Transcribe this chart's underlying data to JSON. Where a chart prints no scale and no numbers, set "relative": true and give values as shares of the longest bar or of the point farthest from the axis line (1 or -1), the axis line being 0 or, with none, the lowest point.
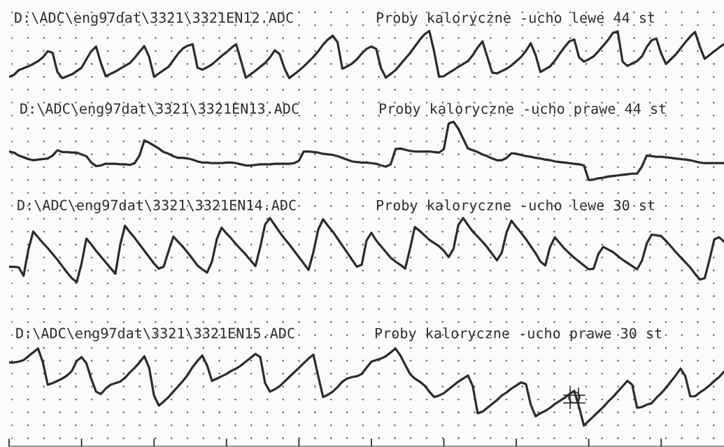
{
  "chart_data": [
    {
      "type": "line",
      "title": "D:\\ADC\\eng97dat\\3321\\3321EN12.ADC",
      "subtitle": "Proby kaloryczne -ucho lewe 44 st",
      "relative": true,
      "grid": true,
      "color": "#2b2b2b",
      "categories": [
        null,
        null,
        null,
        null,
        null,
        null,
        null,
        null,
        null,
        null,
        null,
        null,
        null,
        null,
        null,
        null,
        null,
        null,
        null,
        null,
        null,
        null,
        null,
        null,
        null,
        null,
        null,
        null,
        null,
        null,
        null,
        null,
        null,
        null,
        null,
        null,
        null,
        null,
        null,
        null,
        null,
        null,
        null,
        null,
        null,
        null,
        null,
        null,
        null,
        null,
        null,
        null,
        null,
        null,
        null,
        null,
        null,
        null,
        null,
        null,
        null,
        null,
        null,
        null,
        null,
        null,
        null,
        null,
        null,
        null,
        null,
        null,
        null,
        null,
        null,
        null,
        null,
        null,
        null,
        null,
        null,
        null,
        null,
        null,
        null,
        null,
        null,
        null,
        null,
        null,
        null,
        null,
        null,
        null,
        null,
        null,
        null,
        null,
        null,
        null,
        null,
        null,
        null,
        null,
        null,
        null,
        null,
        null,
        null,
        null,
        null,
        null,
        null,
        null,
        null,
        null,
        null,
        null,
        null,
        null,
        null,
        null,
        null,
        null,
        null,
        null,
        null,
        null,
        null,
        null,
        null,
        null,
        null,
        null,
        null,
        null,
        null,
        null,
        null,
        null,
        null,
        null,
        null,
        null,
        null,
        null,
        null,
        null,
        null
      ],
      "values": [
        0.03,
        0.07,
        0.17,
        0.21,
        0.25,
        0.3,
        0.36,
        0.44,
        0.57,
        0.54,
        0.13,
        0,
        0.04,
        0.08,
        0.15,
        0.22,
        0.4,
        0.57,
        0.67,
        0.32,
        0.04,
        0.09,
        0.14,
        0.2,
        0.26,
        0.32,
        0.43,
        0.56,
        0.68,
        0.45,
        0.03,
        0.1,
        0.17,
        0.24,
        0.38,
        0.52,
        0.63,
        0.69,
        0.72,
        0.22,
        0.18,
        0.23,
        0.29,
        0.38,
        0.47,
        0.55,
        0.64,
        0.72,
        0.37,
        0.01,
        0.08,
        0.16,
        0.24,
        0.32,
        0.44,
        0.59,
        0.51,
        0.21,
        0,
        0.08,
        0.16,
        0.25,
        0.35,
        0.45,
        0.57,
        0.71,
        0.82,
        0.9,
        0.76,
        0.2,
        0.25,
        0.31,
        0.4,
        0.52,
        0.62,
        0.67,
        0.62,
        0.21,
        0.01,
        0.09,
        0.17,
        0.29,
        0.41,
        0.53,
        0.67,
        0.81,
        0.93,
        1,
        0.56,
        0.03,
        0.04,
        0.11,
        0.17,
        0.24,
        0.3,
        0.36,
        0.49,
        0.65,
        0.78,
        0.45,
        0.12,
        0.1,
        0.15,
        0.2,
        0.27,
        0.36,
        0.45,
        0.58,
        0.74,
        0.49,
        0.13,
        0.19,
        0.25,
        0.37,
        0.52,
        0.66,
        0.78,
        0.82,
        0.44,
        0.35,
        0.4,
        0.46,
        0.57,
        0.69,
        0.81,
        0.96,
        0.99,
        0.35,
        0.26,
        0.31,
        0.36,
        0.46,
        0.66,
        0.8,
        0.84,
        0.52,
        0.3,
        0.4,
        0.5,
        0.63,
        0.76,
        0.88,
        0.98,
        0.67,
        0.41,
        0.49,
        0.57,
        0.65,
        0.72
      ]
    },
    {
      "type": "line",
      "title": "D:\\ADC\\eng97dat\\3321\\3321EN13.ADC",
      "subtitle": "Proby kaloryczne -ucho prawe 44 st",
      "relative": true,
      "grid": true,
      "color": "#2b2b2b",
      "categories": [
        null,
        null,
        null,
        null,
        null,
        null,
        null,
        null,
        null,
        null,
        null,
        null,
        null,
        null,
        null,
        null,
        null,
        null,
        null,
        null,
        null,
        null,
        null,
        null,
        null,
        null,
        null,
        null,
        null,
        null,
        null,
        null,
        null,
        null,
        null,
        null,
        null,
        null,
        null,
        null,
        null,
        null,
        null,
        null,
        null,
        null,
        null,
        null,
        null,
        null,
        null,
        null,
        null,
        null,
        null,
        null,
        null,
        null,
        null,
        null,
        null,
        null,
        null,
        null,
        null,
        null,
        null,
        null,
        null,
        null,
        null,
        null,
        null,
        null,
        null,
        null,
        null,
        null,
        null,
        null,
        null,
        null,
        null,
        null,
        null,
        null,
        null,
        null,
        null,
        null,
        null,
        null,
        null,
        null,
        null,
        null,
        null,
        null,
        null,
        null,
        null,
        null,
        null,
        null,
        null,
        null,
        null,
        null,
        null,
        null,
        null,
        null,
        null,
        null,
        null,
        null,
        null,
        null,
        null,
        null,
        null,
        null,
        null,
        null,
        null,
        null,
        null,
        null,
        null,
        null,
        null,
        null,
        null,
        null,
        null,
        null,
        null,
        null,
        null,
        null,
        null,
        null,
        null,
        null,
        null,
        null,
        null,
        null,
        null
      ],
      "values": [
        0.49,
        0.47,
        0.42,
        0.39,
        0.36,
        0.34,
        0.35,
        0.36,
        0.37,
        0.42,
        0.51,
        0.48,
        0.48,
        0.47,
        0.47,
        0.44,
        0.41,
        0.3,
        0.24,
        0.25,
        0.28,
        0.28,
        0.28,
        0.27,
        0.27,
        0.26,
        0.29,
        0.42,
        0.68,
        0.64,
        0.59,
        0.54,
        0.48,
        0.45,
        0.41,
        0.38,
        0.38,
        0.37,
        0.35,
        0.32,
        0.3,
        0.3,
        0.29,
        0.29,
        0.29,
        0.3,
        0.3,
        0.29,
        0.27,
        0.25,
        0.25,
        0.26,
        0.27,
        0.27,
        0.27,
        0.28,
        0.28,
        0.28,
        0.28,
        0.29,
        0.33,
        0.49,
        0.49,
        0.48,
        0.47,
        0.45,
        0.44,
        0.43,
        0.41,
        0.38,
        0.35,
        0.32,
        0.31,
        0.3,
        0.3,
        0.29,
        0.28,
        0.25,
        0.23,
        0.27,
        0.53,
        0.54,
        0.52,
        0.5,
        0.49,
        0.49,
        0.49,
        0.49,
        0.48,
        0.47,
        0.53,
        0.97,
        1,
        0.88,
        0.71,
        0.54,
        0.51,
        0.48,
        0.44,
        0.41,
        0.37,
        0.34,
        0.34,
        0.38,
        0.46,
        0.45,
        0.43,
        0.41,
        0.4,
        0.38,
        0.37,
        0.35,
        0.34,
        0.32,
        0.31,
        0.3,
        0.29,
        0.28,
        0.27,
        0.25,
        0,
        0.01,
        0.03,
        0.04,
        0.06,
        0.07,
        0.08,
        0.09,
        0.1,
        0.11,
        0.11,
        0.23,
        0.42,
        0.41,
        0.4,
        0.4,
        0.39,
        0.38,
        0.37,
        0.36,
        0.35,
        0.34,
        0.32,
        0.3,
        0.29,
        0.29,
        0.29,
        0.29,
        0.29
      ]
    },
    {
      "type": "line",
      "title": "D:\\ADC\\eng97dat\\3321\\3321EN14.ADC",
      "subtitle": "Proby kaloryczne -ucho lewe 30 st",
      "relative": true,
      "grid": true,
      "color": "#2b2b2b",
      "categories": [
        null,
        null,
        null,
        null,
        null,
        null,
        null,
        null,
        null,
        null,
        null,
        null,
        null,
        null,
        null,
        null,
        null,
        null,
        null,
        null,
        null,
        null,
        null,
        null,
        null,
        null,
        null,
        null,
        null,
        null,
        null,
        null,
        null,
        null,
        null,
        null,
        null,
        null,
        null,
        null,
        null,
        null,
        null,
        null,
        null,
        null,
        null,
        null,
        null,
        null,
        null,
        null,
        null,
        null,
        null,
        null,
        null,
        null,
        null,
        null,
        null,
        null,
        null,
        null,
        null,
        null,
        null,
        null,
        null,
        null,
        null,
        null,
        null,
        null,
        null,
        null,
        null,
        null,
        null,
        null,
        null,
        null,
        null,
        null,
        null,
        null,
        null,
        null,
        null,
        null,
        null,
        null,
        null,
        null,
        null,
        null,
        null,
        null,
        null,
        null,
        null,
        null,
        null,
        null,
        null,
        null,
        null,
        null,
        null,
        null,
        null,
        null,
        null,
        null,
        null,
        null,
        null,
        null,
        null,
        null,
        null,
        null,
        null,
        null,
        null,
        null,
        null,
        null,
        null,
        null,
        null,
        null,
        null,
        null,
        null,
        null,
        null,
        null,
        null,
        null,
        null,
        null,
        null,
        null,
        null,
        null,
        null,
        null,
        null
      ],
      "values": [
        0.24,
        0.24,
        0.23,
        0.1,
        0.51,
        0.79,
        0.7,
        0.61,
        0.53,
        0.44,
        0.35,
        0.25,
        0.15,
        0.06,
        0,
        0.29,
        0.68,
        0.59,
        0.49,
        0.4,
        0.31,
        0.22,
        0.13,
        0.58,
        0.88,
        0.78,
        0.69,
        0.59,
        0.49,
        0.39,
        0.29,
        0.21,
        0.24,
        0.48,
        0.71,
        0.63,
        0.55,
        0.46,
        0.36,
        0.26,
        0.2,
        0.15,
        0.32,
        0.67,
        0.85,
        0.76,
        0.68,
        0.59,
        0.51,
        0.43,
        0.34,
        0.25,
        0.55,
        0.9,
        1,
        0.89,
        0.78,
        0.68,
        0.59,
        0.49,
        0.39,
        0.29,
        0.19,
        0.47,
        0.82,
        0.98,
        0.88,
        0.79,
        0.68,
        0.57,
        0.46,
        0.35,
        0.24,
        0.27,
        0.65,
        0.77,
        0.65,
        0.56,
        0.47,
        0.38,
        0.32,
        0.27,
        0.21,
        0.52,
        0.86,
        0.8,
        0.73,
        0.66,
        0.61,
        0.56,
        0.49,
        0.39,
        0.52,
        0.89,
        1,
        0.89,
        0.79,
        0.71,
        0.63,
        0.54,
        0.44,
        0.34,
        0.46,
        0.78,
        0.96,
        0.86,
        0.77,
        0.67,
        0.56,
        0.45,
        0.32,
        0.26,
        0.55,
        0.7,
        0.61,
        0.52,
        0.45,
        0.38,
        0.32,
        0.26,
        0.2,
        0.21,
        0.44,
        0.55,
        0.51,
        0.47,
        0.41,
        0.35,
        0.3,
        0.25,
        0.2,
        0.33,
        0.6,
        0.74,
        0.73,
        0.72,
        0.64,
        0.56,
        0.47,
        0.39,
        0.31,
        0.23,
        0.13,
        0.04,
        0.06,
        0.35,
        0.67,
        0.7,
        0.63
      ]
    },
    {
      "type": "line",
      "title": "D:\\ADC\\eng97dat\\3321\\3321EN15.ADC",
      "subtitle": "Proby kaloryczne -ucho prawe 30 st",
      "relative": true,
      "grid": true,
      "color": "#2b2b2b",
      "categories": [
        null,
        null,
        null,
        null,
        null,
        null,
        null,
        null,
        null,
        null,
        null,
        null,
        null,
        null,
        null,
        null,
        null,
        null,
        null,
        null,
        null,
        null,
        null,
        null,
        null,
        null,
        null,
        null,
        null,
        null,
        null,
        null,
        null,
        null,
        null,
        null,
        null,
        null,
        null,
        null,
        null,
        null,
        null,
        null,
        null,
        null,
        null,
        null,
        null,
        null,
        null,
        null,
        null,
        null,
        null,
        null,
        null,
        null,
        null,
        null,
        null,
        null,
        null,
        null,
        null,
        null,
        null,
        null,
        null,
        null,
        null,
        null,
        null,
        null,
        null,
        null,
        null,
        null,
        null,
        null,
        null,
        null,
        null,
        null,
        null,
        null,
        null,
        null,
        null,
        null,
        null,
        null,
        null,
        null,
        null,
        null,
        null,
        null,
        null,
        null,
        null,
        null,
        null,
        null,
        null,
        null,
        null,
        null,
        null,
        null,
        null,
        null,
        null,
        null,
        null,
        null,
        null,
        null,
        null,
        null,
        null,
        null,
        null,
        null,
        null,
        null,
        null,
        null,
        null,
        null,
        null,
        null,
        null,
        null,
        null,
        null,
        null,
        null,
        null,
        null,
        null,
        null,
        null,
        null,
        null,
        null,
        null,
        null,
        null
      ],
      "values": [
        0.82,
        0.82,
        0.83,
        0.85,
        0.9,
        0.95,
        1,
        0.82,
        0.53,
        0.55,
        0.58,
        0.61,
        0.65,
        0.71,
        0.84,
        0.89,
        0.81,
        0.61,
        0.44,
        0.41,
        0.48,
        0.53,
        0.55,
        0.57,
        0.62,
        0.69,
        0.75,
        0.82,
        0.9,
        0.75,
        0.39,
        0.26,
        0.31,
        0.37,
        0.44,
        0.51,
        0.58,
        0.66,
        0.76,
        0.84,
        0.91,
        0.78,
        0.58,
        0.61,
        0.64,
        0.67,
        0.71,
        0.74,
        0.78,
        0.83,
        0.88,
        0.93,
        0.89,
        0.55,
        0.44,
        0.47,
        0.51,
        0.57,
        0.63,
        0.69,
        0.75,
        0.81,
        0.87,
        0.92,
        0.64,
        0.37,
        0.4,
        0.44,
        0.5,
        0.57,
        0.61,
        0.63,
        0.64,
        0.67,
        0.75,
        0.83,
        0.85,
        0.87,
        0.9,
        0.95,
        1,
        0.91,
        0.79,
        0.67,
        0.61,
        0.57,
        0.52,
        0.44,
        0.37,
        0.39,
        0.42,
        0.47,
        0.52,
        0.57,
        0.61,
        0.65,
        0.51,
        0.16,
        0.18,
        0.23,
        0.28,
        0.33,
        0.39,
        0.43,
        0.48,
        0.52,
        0.56,
        0.54,
        0.27,
        0.12,
        0.16,
        0.19,
        0.23,
        0.28,
        0.32,
        0.36,
        0.41,
        0.45,
        0.24,
        0,
        0.06,
        0.12,
        0.18,
        0.24,
        0.31,
        0.37,
        0.44,
        0.51,
        0.58,
        0.53,
        0.23,
        0.24,
        0.27,
        0.29,
        0.36,
        0.42,
        0.49,
        0.57,
        0.65,
        0.74,
        0.64,
        0.38,
        0.38,
        0.43,
        0.47,
        0.52,
        0.58,
        0.63,
        0.7
      ]
    }
  ]
}
